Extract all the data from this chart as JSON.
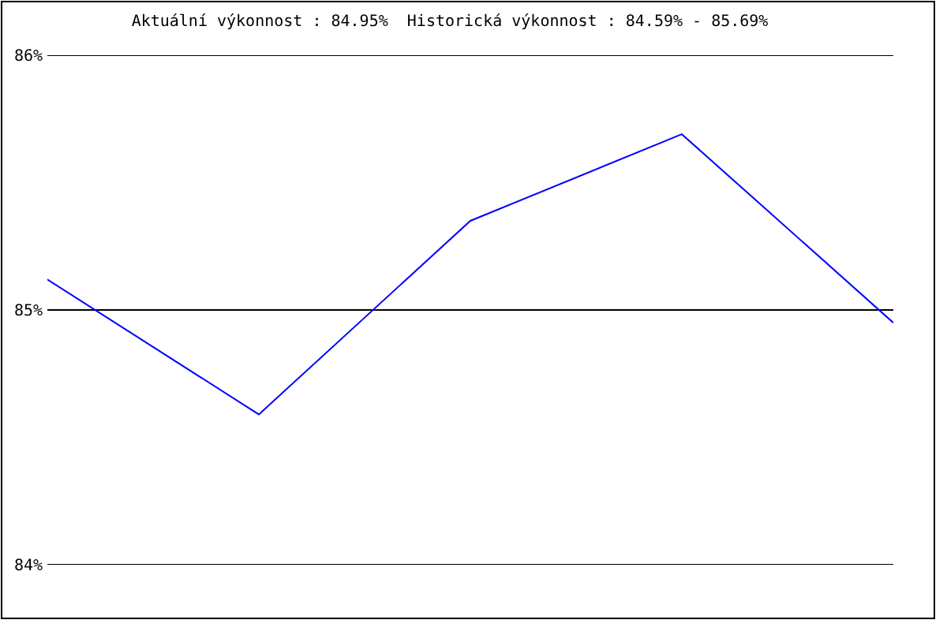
{
  "chart_data": {
    "type": "line",
    "title": "Aktuální výkonnost : 84.95%  Historická výkonnost : 84.59% - 85.69%",
    "categories": [
      null,
      null,
      null,
      null,
      null
    ],
    "series": [
      {
        "color": "#0000ff",
        "values": [
          85.12,
          84.59,
          85.35,
          85.69,
          84.95
        ]
      }
    ],
    "ylim": [
      84,
      86
    ],
    "yticks": [
      {
        "value": 84,
        "label": "84%"
      },
      {
        "value": 85,
        "label": "85%"
      },
      {
        "value": 86,
        "label": "86%"
      }
    ],
    "grid": "y",
    "marker": "none",
    "line_style": "solid",
    "tick_labels": "y"
  }
}
